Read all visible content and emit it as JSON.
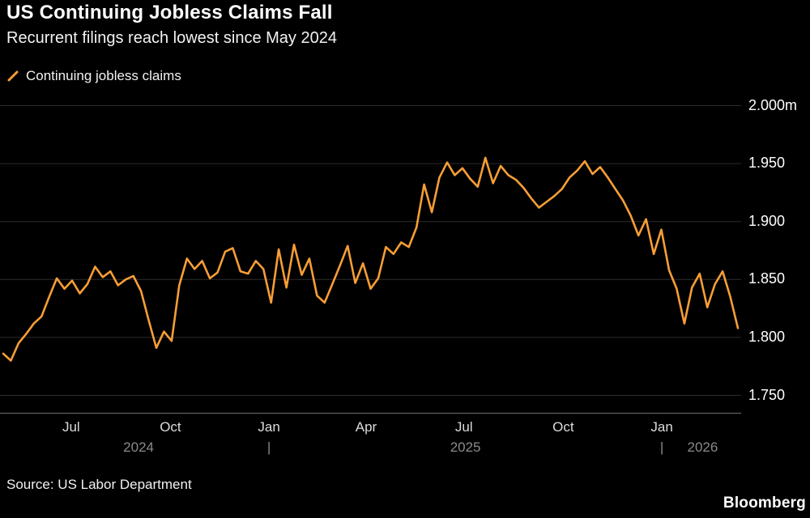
{
  "header": {
    "title": "US Continuing Jobless Claims Fall",
    "subtitle": "Recurrent filings reach lowest since May 2024"
  },
  "legend": {
    "label": "Continuing jobless claims"
  },
  "footer": {
    "source": "Source: US Labor Department",
    "brand": "Bloomberg"
  },
  "colors": {
    "background": "#000000",
    "line": "#f79e35",
    "grid": "#2d2d2d",
    "axis": "#6f6f6f",
    "text": "#ffffff",
    "muted": "#8a8a8a"
  },
  "chart_data": {
    "type": "line",
    "title": "US Continuing Jobless Claims Fall",
    "subtitle": "Recurrent filings reach lowest since May 2024",
    "unit": "millions",
    "ylim": [
      1.75,
      2.0
    ],
    "grid": "horizontal",
    "legend_position": "top-left",
    "y_ticks": [
      "2.000m",
      "1.950",
      "1.900",
      "1.850",
      "1.800",
      "1.750"
    ],
    "y_tick_values": [
      2.0,
      1.95,
      1.9,
      1.85,
      1.8,
      1.75
    ],
    "x_ticks": [
      {
        "label": "Jul",
        "pos": 0.096
      },
      {
        "label": "Oct",
        "pos": 0.23
      },
      {
        "label": "Jan",
        "pos": 0.363
      },
      {
        "label": "Apr",
        "pos": 0.494
      },
      {
        "label": "Jul",
        "pos": 0.626
      },
      {
        "label": "Oct",
        "pos": 0.76
      },
      {
        "label": "Jan",
        "pos": 0.893
      }
    ],
    "year_ticks": [
      0.363,
      0.893
    ],
    "year_labels": [
      {
        "label": "2024",
        "pos": 0.187
      },
      {
        "label": "2025",
        "pos": 0.628
      },
      {
        "label": "2026",
        "pos": 0.948
      }
    ],
    "series": [
      {
        "name": "Continuing jobless claims",
        "values": [
          1.786,
          1.78,
          1.795,
          1.803,
          1.812,
          1.818,
          1.835,
          1.851,
          1.842,
          1.849,
          1.838,
          1.846,
          1.861,
          1.852,
          1.857,
          1.845,
          1.85,
          1.853,
          1.84,
          1.815,
          1.791,
          1.805,
          1.797,
          1.845,
          1.868,
          1.859,
          1.866,
          1.851,
          1.856,
          1.874,
          1.877,
          1.857,
          1.855,
          1.866,
          1.859,
          1.83,
          1.876,
          1.843,
          1.88,
          1.854,
          1.868,
          1.836,
          1.83,
          1.846,
          1.862,
          1.879,
          1.847,
          1.864,
          1.842,
          1.851,
          1.878,
          1.872,
          1.882,
          1.878,
          1.895,
          1.932,
          1.908,
          1.938,
          1.951,
          1.94,
          1.946,
          1.937,
          1.93,
          1.955,
          1.933,
          1.948,
          1.94,
          1.936,
          1.929,
          1.92,
          1.912,
          1.917,
          1.922,
          1.928,
          1.938,
          1.944,
          1.952,
          1.941,
          1.947,
          1.938,
          1.928,
          1.918,
          1.905,
          1.888,
          1.902,
          1.872,
          1.893,
          1.858,
          1.842,
          1.812,
          1.843,
          1.855,
          1.826,
          1.846,
          1.857,
          1.835,
          1.808
        ]
      }
    ]
  }
}
